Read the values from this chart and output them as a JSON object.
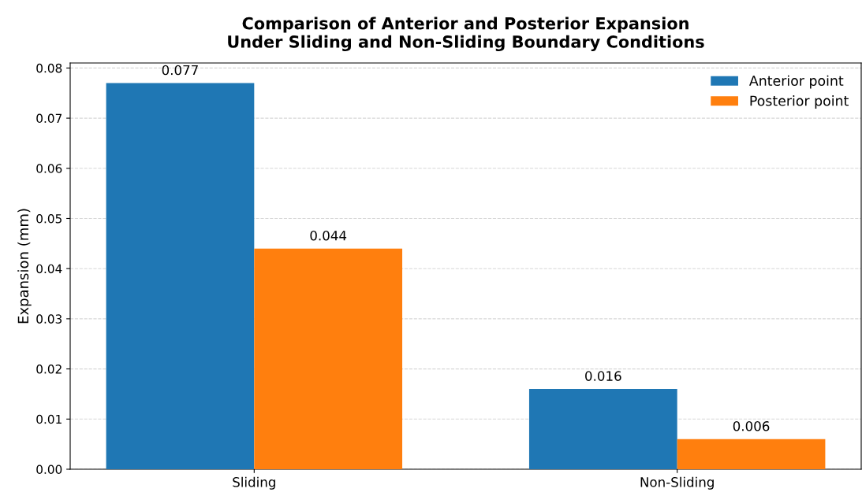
{
  "chart_data": {
    "type": "bar",
    "title": "Comparison of Anterior and Posterior Expansion\nUnder Sliding and Non-Sliding Boundary Conditions",
    "ylabel": "Expansion (mm)",
    "categories": [
      "Sliding",
      "Non-Sliding"
    ],
    "series": [
      {
        "name": "Anterior point",
        "color": "#1f77b4",
        "values": [
          0.077,
          0.016
        ]
      },
      {
        "name": "Posterior point",
        "color": "#ff7f0e",
        "values": [
          0.044,
          0.006
        ]
      }
    ],
    "ylim": [
      0,
      0.081
    ],
    "yticks": [
      {
        "value": 0,
        "label": "0.00"
      },
      {
        "value": 0.01,
        "label": "0.01"
      },
      {
        "value": 0.02,
        "label": "0.02"
      },
      {
        "value": 0.03,
        "label": "0.03"
      },
      {
        "value": 0.04,
        "label": "0.04"
      },
      {
        "value": 0.05,
        "label": "0.05"
      },
      {
        "value": 0.06,
        "label": "0.06"
      },
      {
        "value": 0.07,
        "label": "0.07"
      },
      {
        "value": 0.08,
        "label": "0.08"
      }
    ],
    "grid": "y",
    "legend": "top right",
    "data_labels": true
  }
}
